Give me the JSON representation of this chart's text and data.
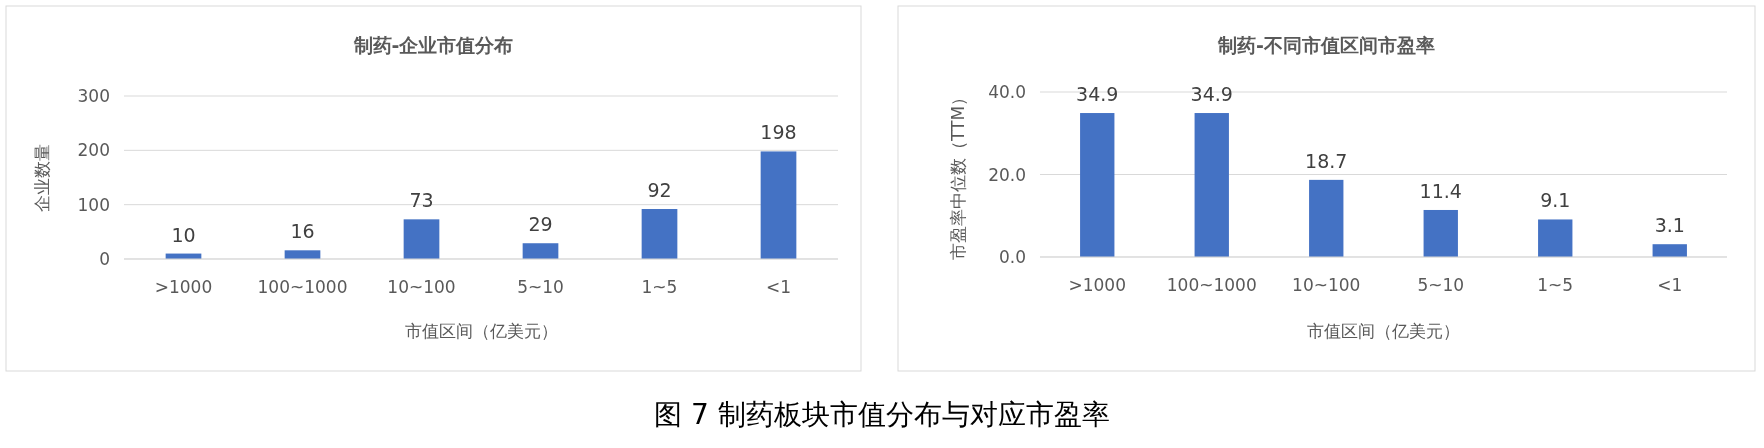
{
  "chart_data": [
    {
      "type": "bar",
      "title": "制药-企业市值分布",
      "xlabel": "市值区间（亿美元）",
      "ylabel": "企业数量",
      "categories": [
        ">1000",
        "100~1000",
        "10~100",
        "5~10",
        "1~5",
        "<1"
      ],
      "values": [
        10,
        16,
        73,
        29,
        92,
        198
      ],
      "color": "#4472c4",
      "ylim": [
        0,
        300
      ],
      "yticks": [
        0,
        100,
        200,
        300
      ],
      "grid": "y",
      "data_labels": true
    },
    {
      "type": "bar",
      "title": "制药-不同市值区间市盈率",
      "xlabel": "市值区间（亿美元）",
      "ylabel": "市盈率中位数（TTM）",
      "categories": [
        ">1000",
        "100~1000",
        "10~100",
        "5~10",
        "1~5",
        "<1"
      ],
      "values": [
        34.9,
        34.9,
        18.7,
        11.4,
        9.1,
        3.1
      ],
      "value_labels": [
        "34.9",
        "34.9",
        "18.7",
        "11.4",
        "9.1",
        "3.1"
      ],
      "color": "#4472c4",
      "ylim": [
        0,
        40
      ],
      "yticks": [
        {
          "value": 0,
          "label": "0.0"
        },
        {
          "value": 20,
          "label": "20.0"
        },
        {
          "value": 40,
          "label": "40.0"
        }
      ],
      "grid": "y",
      "annotations": [
        "图 7  制药板块市值分布与对应市盈率"
      ]
    }
  ]
}
